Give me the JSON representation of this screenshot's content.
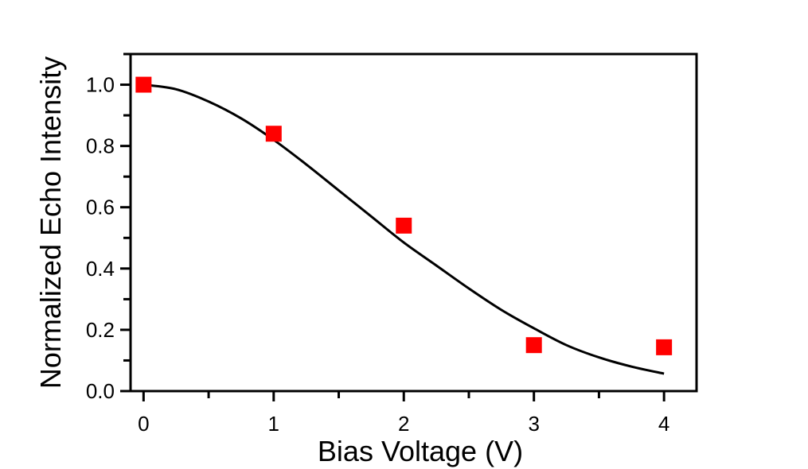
{
  "chart_data": {
    "type": "scatter",
    "xlabel": "Bias Voltage (V)",
    "ylabel": "Normalized Echo Intensity",
    "xlim": [
      -0.1,
      4.25
    ],
    "ylim": [
      0,
      1.1
    ],
    "x_ticks": [
      "0",
      "1",
      "2",
      "3",
      "4"
    ],
    "y_ticks": [
      "0.0",
      "0.2",
      "0.4",
      "0.6",
      "0.8",
      "1.0"
    ],
    "grid": false,
    "series": [
      {
        "kind": "points",
        "marker": "square",
        "color": "#ff0000",
        "x": [
          0,
          1,
          2,
          3,
          4
        ],
        "y": [
          1.0,
          0.84,
          0.54,
          0.15,
          0.143
        ]
      },
      {
        "kind": "fit-curve",
        "color": "#000000",
        "x": [
          0,
          0.25,
          0.5,
          0.75,
          1.0,
          1.25,
          1.5,
          1.75,
          2.0,
          2.25,
          2.5,
          2.75,
          3.0,
          3.25,
          3.5,
          3.75,
          4.0
        ],
        "y": [
          1.0,
          0.985,
          0.945,
          0.89,
          0.82,
          0.74,
          0.655,
          0.57,
          0.485,
          0.41,
          0.335,
          0.265,
          0.205,
          0.15,
          0.11,
          0.08,
          0.057
        ]
      }
    ]
  }
}
